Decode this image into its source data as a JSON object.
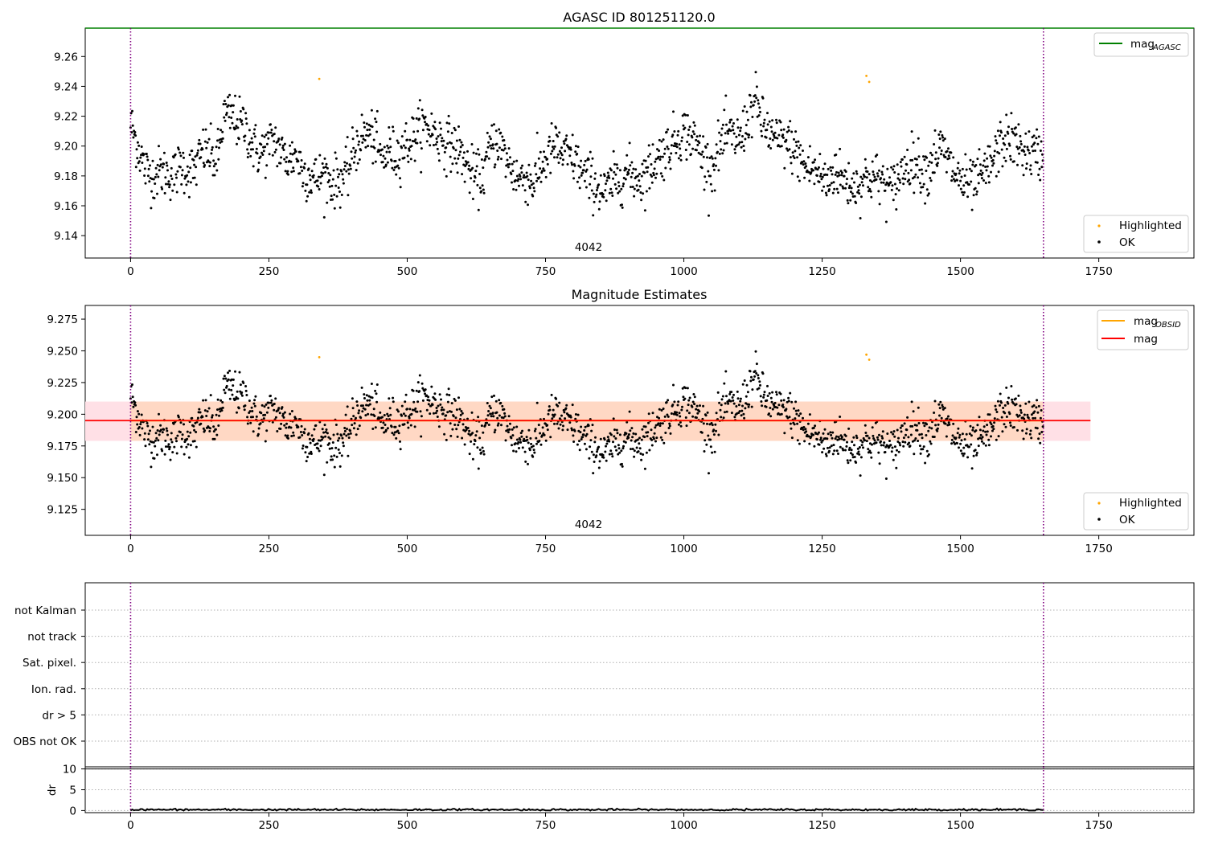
{
  "chart_data": [
    {
      "panel": "agasc",
      "type": "scatter",
      "title": "AGASC ID 801251120.0",
      "xlim": [
        -82,
        1922
      ],
      "ylim": [
        9.125,
        9.279
      ],
      "xticks": [
        0,
        250,
        500,
        750,
        1000,
        1250,
        1500,
        1750
      ],
      "xtick_labels": [
        "0",
        "250",
        "500",
        "750",
        "1000",
        "1250",
        "1500",
        "1750"
      ],
      "yticks": [
        9.14,
        9.16,
        9.18,
        9.2,
        9.22,
        9.24,
        9.26
      ],
      "ytick_labels": [
        "9.14",
        "9.16",
        "9.18",
        "9.20",
        "9.22",
        "9.24",
        "9.26"
      ],
      "vlines": [
        0,
        1650
      ],
      "obsid_label": "4042",
      "obsid_label_x": 825,
      "hline": {
        "name": "magAGASC",
        "y": 9.279,
        "color": "#008000"
      },
      "legend_lines": [
        {
          "label": "mag",
          "sub": "AGASC",
          "color": "#008000"
        }
      ],
      "legend_points": [
        {
          "label": "Highlighted",
          "color": "#ffa500"
        },
        {
          "label": "OK",
          "color": "#000000"
        }
      ],
      "series": [
        {
          "name": "OK",
          "color": "#000000",
          "n_points": 1650,
          "x_range": [
            0,
            1650
          ],
          "values": [
            9.215,
            9.2,
            9.185,
            9.18,
            9.183,
            9.182,
            9.18,
            9.188,
            9.183,
            9.185,
            9.197,
            9.195,
            9.188,
            9.22,
            9.22,
            9.215,
            9.213,
            9.2,
            9.195,
            9.199,
            9.205,
            9.195,
            9.19,
            9.195,
            9.183,
            9.18,
            9.178,
            9.182,
            9.175,
            9.178,
            9.18,
            9.195,
            9.205,
            9.208,
            9.205,
            9.19,
            9.198,
            9.193,
            9.2,
            9.203,
            9.21,
            9.213,
            9.21,
            9.205,
            9.202,
            9.2,
            9.195,
            9.185,
            9.178,
            9.18,
            9.198,
            9.205,
            9.195,
            9.185,
            9.178,
            9.18,
            9.175,
            9.185,
            9.193,
            9.2,
            9.195,
            9.193,
            9.19,
            9.18,
            9.178,
            9.173,
            9.168,
            9.175,
            9.178,
            9.183,
            9.18,
            9.178,
            9.183,
            9.19,
            9.195,
            9.2,
            9.205,
            9.21,
            9.206,
            9.2,
            9.19,
            9.185,
            9.2,
            9.208,
            9.205,
            9.205,
            9.22,
            9.23,
            9.215,
            9.208,
            9.203,
            9.203,
            9.2,
            9.193,
            9.185,
            9.185,
            9.18,
            9.175,
            9.185,
            9.178,
            9.175,
            9.173,
            9.178,
            9.18,
            9.178,
            9.175,
            9.17,
            9.18,
            9.188,
            9.19,
            9.185,
            9.183,
            9.195,
            9.198,
            9.188,
            9.18,
            9.175,
            9.173,
            9.177,
            9.182,
            9.19,
            9.2,
            9.205,
            9.202,
            9.198,
            9.195,
            9.195,
            9.193
          ]
        },
        {
          "name": "Highlighted",
          "color": "#ffa500",
          "points": [
            [
              341,
              9.245
            ],
            [
              1330,
              9.247
            ],
            [
              1335,
              9.243
            ]
          ]
        }
      ]
    },
    {
      "panel": "magnitude-estimates",
      "type": "scatter",
      "title": "Magnitude Estimates",
      "xlim": [
        -82,
        1922
      ],
      "ylim": [
        9.1045,
        9.2858
      ],
      "xticks": [
        0,
        250,
        500,
        750,
        1000,
        1250,
        1500,
        1750
      ],
      "xtick_labels": [
        "0",
        "250",
        "500",
        "750",
        "1000",
        "1250",
        "1500",
        "1750"
      ],
      "yticks": [
        9.125,
        9.15,
        9.175,
        9.2,
        9.225,
        9.25,
        9.275
      ],
      "ytick_labels": [
        "9.125",
        "9.150",
        "9.175",
        "9.200",
        "9.225",
        "9.250",
        "9.275"
      ],
      "vlines": [
        0,
        1650
      ],
      "obsid_label": "4042",
      "obsid_label_x": 825,
      "band_mag": {
        "x": [
          -82,
          1735
        ],
        "y": [
          9.179,
          9.21
        ],
        "color": "#ffe0e6"
      },
      "band_obsid": {
        "x": [
          0,
          1650
        ],
        "y": [
          9.179,
          9.21
        ],
        "color": "#ffd8c4"
      },
      "hline_mag": {
        "y": 9.195,
        "x": [
          -82,
          1735
        ],
        "color": "#ff0000"
      },
      "hline_obsid": {
        "y": 9.195,
        "x": [
          0,
          1650
        ],
        "color": "#ffa500"
      },
      "legend_lines": [
        {
          "label": "mag",
          "sub": "OBSID",
          "color": "#ffa500"
        },
        {
          "label": "mag",
          "sub": "",
          "color": "#ff0000"
        }
      ],
      "legend_points": [
        {
          "label": "Highlighted",
          "color": "#ffa500"
        },
        {
          "label": "OK",
          "color": "#000000"
        }
      ],
      "series_ref": "same as AGASC panel (OK + Highlighted)"
    },
    {
      "panel": "flags",
      "type": "scatter",
      "ytick_labels": [
        "not Kalman",
        "not track",
        "Sat. pixel.",
        "Ion. rad.",
        "dr > 5",
        "OBS not OK"
      ],
      "xlim": [
        -82,
        1922
      ],
      "vlines": [
        0,
        1650
      ],
      "grid": "horizontal dotted",
      "points": []
    },
    {
      "panel": "dr",
      "type": "line",
      "ylabel": "dr",
      "xlim": [
        -82,
        1922
      ],
      "ylim": [
        -0.5,
        10.5
      ],
      "yticks": [
        0,
        5,
        10
      ],
      "ytick_labels": [
        "0",
        "5",
        "10"
      ],
      "xticks": [
        0,
        250,
        500,
        750,
        1000,
        1250,
        1500,
        1750
      ],
      "xtick_labels": [
        "0",
        "250",
        "500",
        "750",
        "1000",
        "1250",
        "1500",
        "1750"
      ],
      "vlines": [
        0,
        1650
      ],
      "hline": {
        "y": 10,
        "color": "#000000"
      },
      "grid": "horizontal dotted",
      "series": [
        {
          "name": "dr",
          "color": "#000000",
          "x_range": [
            0,
            1650
          ],
          "mean": 0.2,
          "max": 0.5
        }
      ]
    }
  ]
}
